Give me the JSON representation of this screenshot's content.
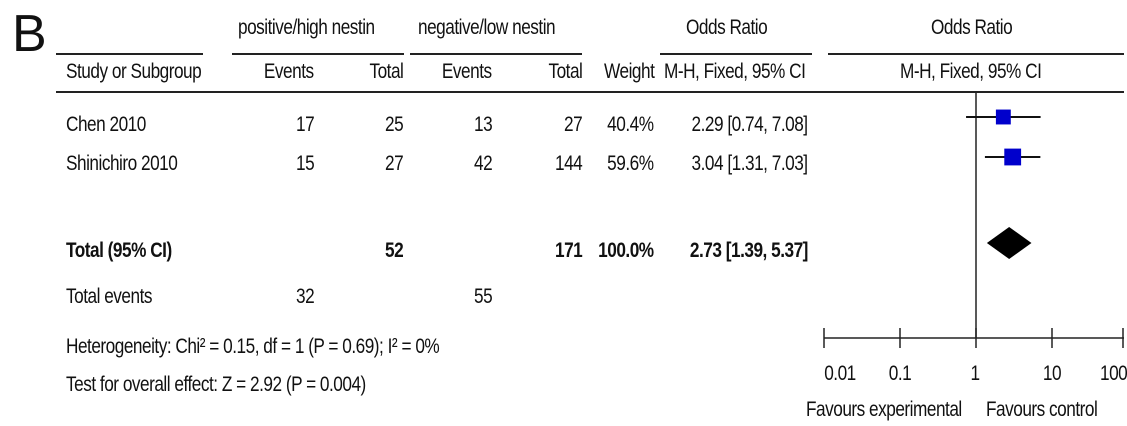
{
  "panel_label": "B",
  "groups": {
    "experimental": "positive/high nestin",
    "control": "negative/low nestin"
  },
  "columns": {
    "study": "Study or Subgroup",
    "events_exp": "Events",
    "total_exp": "Total",
    "events_ctl": "Events",
    "total_ctl": "Total",
    "weight": "Weight",
    "or_title": "Odds Ratio",
    "or_method": "M-H, Fixed, 95% CI",
    "plot_title": "Odds Ratio",
    "plot_method": "M-H, Fixed, 95% CI"
  },
  "studies": [
    {
      "name": "Chen 2010",
      "events_exp": "17",
      "total_exp": "25",
      "events_ctl": "13",
      "total_ctl": "27",
      "weight": "40.4%",
      "or_text": "2.29 [0.74, 7.08]"
    },
    {
      "name": "Shinichiro 2010",
      "events_exp": "15",
      "total_exp": "27",
      "events_ctl": "42",
      "total_ctl": "144",
      "weight": "59.6%",
      "or_text": "3.04 [1.31, 7.03]"
    }
  ],
  "total": {
    "label": "Total (95% CI)",
    "total_exp": "52",
    "total_ctl": "171",
    "weight": "100.0%",
    "or_text": "2.73 [1.39, 5.37]"
  },
  "total_events": {
    "label": "Total events",
    "events_exp": "32",
    "events_ctl": "55"
  },
  "heterogeneity": "Heterogeneity: Chi² = 0.15, df = 1 (P = 0.69); I² = 0%",
  "overall_effect": "Test for overall effect: Z = 2.92 (P = 0.004)",
  "axis": {
    "tick_labels": [
      "0.01",
      "0.1",
      "1",
      "10",
      "100"
    ],
    "favours_left": "Favours experimental",
    "favours_right": "Favours control"
  },
  "chart_data": {
    "type": "scatter",
    "title": "Odds Ratio",
    "xlabel": "",
    "x_scale": "log",
    "xlim": [
      0.01,
      100
    ],
    "x_ticks": [
      0.01,
      0.1,
      1,
      10,
      100
    ],
    "reference_line": 1,
    "points": [
      {
        "name": "Chen 2010",
        "or": 2.29,
        "ci_low": 0.74,
        "ci_high": 7.08,
        "weight_pct": 40.4,
        "marker": "square",
        "color": "#0000cc"
      },
      {
        "name": "Shinichiro 2010",
        "or": 3.04,
        "ci_low": 1.31,
        "ci_high": 7.03,
        "weight_pct": 59.6,
        "marker": "square",
        "color": "#0000cc"
      }
    ],
    "pooled": {
      "name": "Total (95% CI)",
      "or": 2.73,
      "ci_low": 1.39,
      "ci_high": 5.37,
      "marker": "diamond",
      "color": "#000000"
    }
  }
}
